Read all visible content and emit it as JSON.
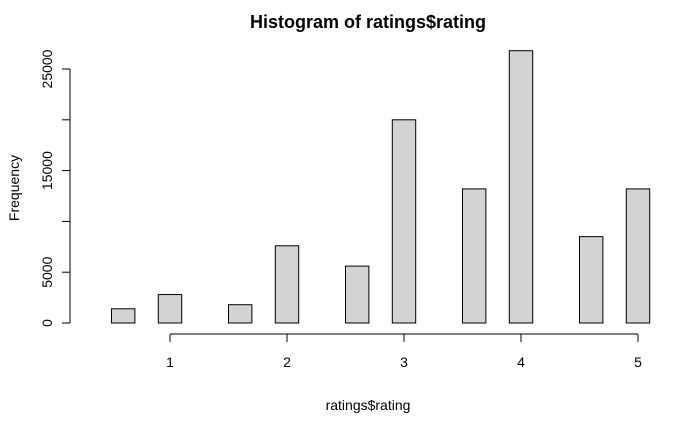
{
  "chart_data": {
    "type": "bar",
    "title": "Histogram of ratings$rating",
    "xlabel": "ratings$rating",
    "ylabel": "Frequency",
    "xlim": [
      0.5,
      5
    ],
    "ylim": [
      0,
      27000
    ],
    "xticks": [
      "1",
      "2",
      "3",
      "4",
      "5"
    ],
    "yticks": [
      "0",
      "5000",
      "15000",
      "25000"
    ],
    "bin_width": 0.2,
    "bins": [
      {
        "x0": 0.5,
        "x1": 0.7,
        "value": 1400
      },
      {
        "x0": 0.9,
        "x1": 1.1,
        "value": 2800
      },
      {
        "x0": 1.5,
        "x1": 1.7,
        "value": 1800
      },
      {
        "x0": 1.9,
        "x1": 2.1,
        "value": 7600
      },
      {
        "x0": 2.5,
        "x1": 2.7,
        "value": 5600
      },
      {
        "x0": 2.9,
        "x1": 3.1,
        "value": 20000
      },
      {
        "x0": 3.5,
        "x1": 3.7,
        "value": 13200
      },
      {
        "x0": 3.9,
        "x1": 4.1,
        "value": 26800
      },
      {
        "x0": 4.5,
        "x1": 4.7,
        "value": 8500
      },
      {
        "x0": 4.9,
        "x1": 5.1,
        "value": 13200
      }
    ],
    "bar_fill": "#d3d3d3",
    "bar_stroke": "#000000",
    "grid": false,
    "legend": "none"
  }
}
